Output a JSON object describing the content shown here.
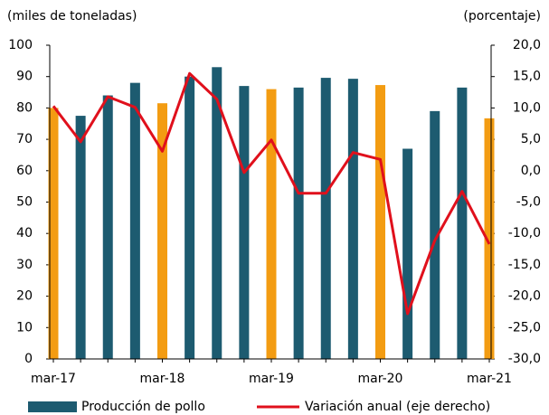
{
  "chart_data": {
    "type": "bar",
    "y_label": "(miles de toneladas)",
    "y2_label": "(porcentaje)",
    "categories": [
      "mar-17",
      null,
      null,
      null,
      "mar-18",
      null,
      null,
      null,
      "mar-19",
      null,
      null,
      null,
      "mar-20",
      null,
      null,
      null,
      "mar-21"
    ],
    "series": [
      {
        "name": "Producción de pollo",
        "type": "bar",
        "color": "#1d5b70",
        "colors": [
          "#f39c12",
          "#1d5b70",
          "#1d5b70",
          "#1d5b70",
          "#f39c12",
          "#1d5b70",
          "#1d5b70",
          "#1d5b70",
          "#f39c12",
          "#1d5b70",
          "#1d5b70",
          "#1d5b70",
          "#f39c12",
          "#1d5b70",
          "#1d5b70",
          "#1d5b70",
          "#f39c12"
        ],
        "values": [
          80,
          77.5,
          84,
          88,
          81.5,
          90,
          93,
          87,
          86,
          86.5,
          89.6,
          89.3,
          87.3,
          67,
          79,
          86.5,
          76.7
        ]
      },
      {
        "name": "Variación anual (eje derecho)",
        "type": "line",
        "color": "#e0101c",
        "axis": "y2",
        "values": [
          10.3,
          4.6,
          11.8,
          10.1,
          3.1,
          15.5,
          11.4,
          -0.3,
          4.9,
          -3.6,
          -3.6,
          2.9,
          1.8,
          -22.8,
          -11.1,
          -3.3,
          -11.7
        ]
      }
    ],
    "ylim": [
      0,
      100
    ],
    "yticks": [
      0,
      10,
      20,
      30,
      40,
      50,
      60,
      70,
      80,
      90,
      100
    ],
    "y2lim": [
      -30,
      20
    ],
    "y2ticks": [
      {
        "value": -30,
        "label": "-30,0"
      },
      {
        "value": -25,
        "label": "-25,0"
      },
      {
        "value": -20,
        "label": "-20,0"
      },
      {
        "value": -15,
        "label": "-15,0"
      },
      {
        "value": -10,
        "label": "-10,0"
      },
      {
        "value": -5,
        "label": "-5,0"
      },
      {
        "value": 0,
        "label": "0,0"
      },
      {
        "value": 5,
        "label": "5,0"
      },
      {
        "value": 10,
        "label": "10,0"
      },
      {
        "value": 15,
        "label": "15,0"
      },
      {
        "value": 20,
        "label": "20,0"
      }
    ],
    "legend": "bottom",
    "grid": false
  }
}
